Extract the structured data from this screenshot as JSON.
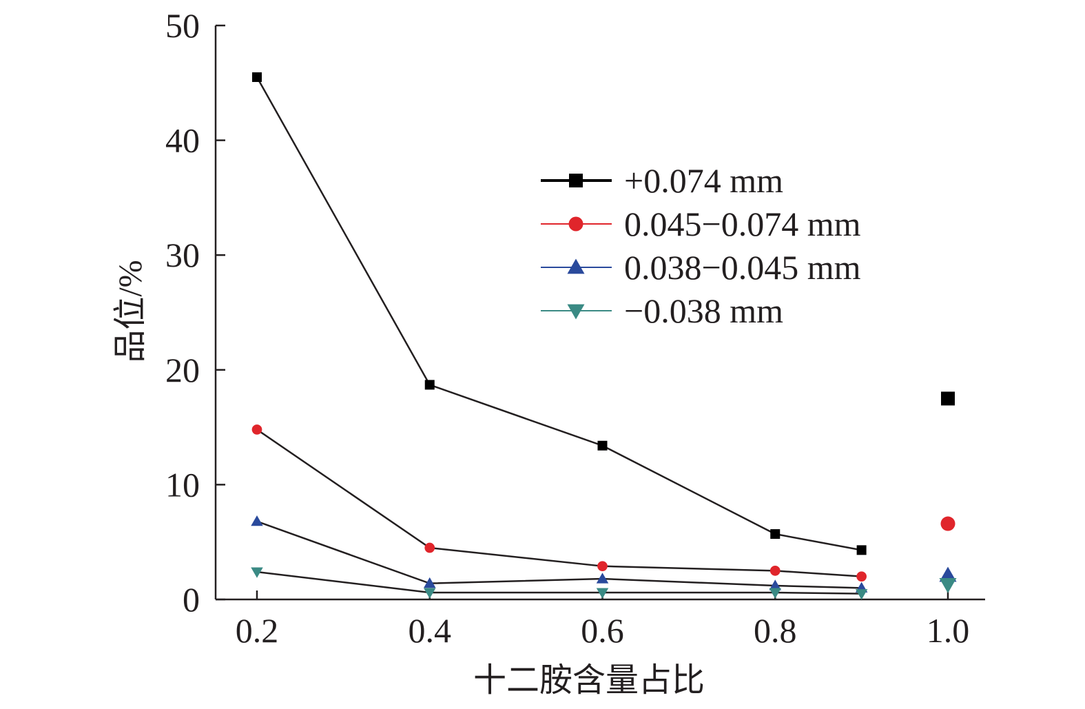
{
  "chart_data": {
    "type": "line",
    "title": "",
    "xlabel": "十二胺含量占比",
    "ylabel": "品位/%",
    "x_ticks": [
      "0.2",
      "0.4",
      "0.6",
      "0.8",
      "1.0"
    ],
    "y_ticks": [
      "0",
      "10",
      "20",
      "30",
      "40",
      "50"
    ],
    "xlim": [
      0.15,
      1.05
    ],
    "ylim": [
      0,
      50
    ],
    "grid": false,
    "legend_position": "top-right",
    "x": [
      0.2,
      0.4,
      0.6,
      0.8,
      0.9
    ],
    "series": [
      {
        "name": "+0.074 mm",
        "values": [
          45.5,
          18.7,
          13.4,
          5.7,
          4.3
        ],
        "extra_point": {
          "x": 1.0,
          "y": 17.5
        },
        "color": "#000000",
        "marker": "square"
      },
      {
        "name": "0.045−0.074 mm",
        "values": [
          14.8,
          4.5,
          2.9,
          2.5,
          2.0
        ],
        "extra_point": {
          "x": 1.0,
          "y": 6.6
        },
        "color": "#e0252b",
        "marker": "circle"
      },
      {
        "name": "0.038−0.045 mm",
        "values": [
          6.8,
          1.4,
          1.8,
          1.2,
          1.0
        ],
        "extra_point": {
          "x": 1.0,
          "y": 2.1
        },
        "color": "#2a4a9c",
        "marker": "triangle-up"
      },
      {
        "name": "−0.038 mm",
        "values": [
          2.4,
          0.6,
          0.6,
          0.6,
          0.5
        ],
        "extra_point": {
          "x": 1.0,
          "y": 1.3
        },
        "color": "#3a8a84",
        "marker": "triangle-down"
      }
    ]
  }
}
